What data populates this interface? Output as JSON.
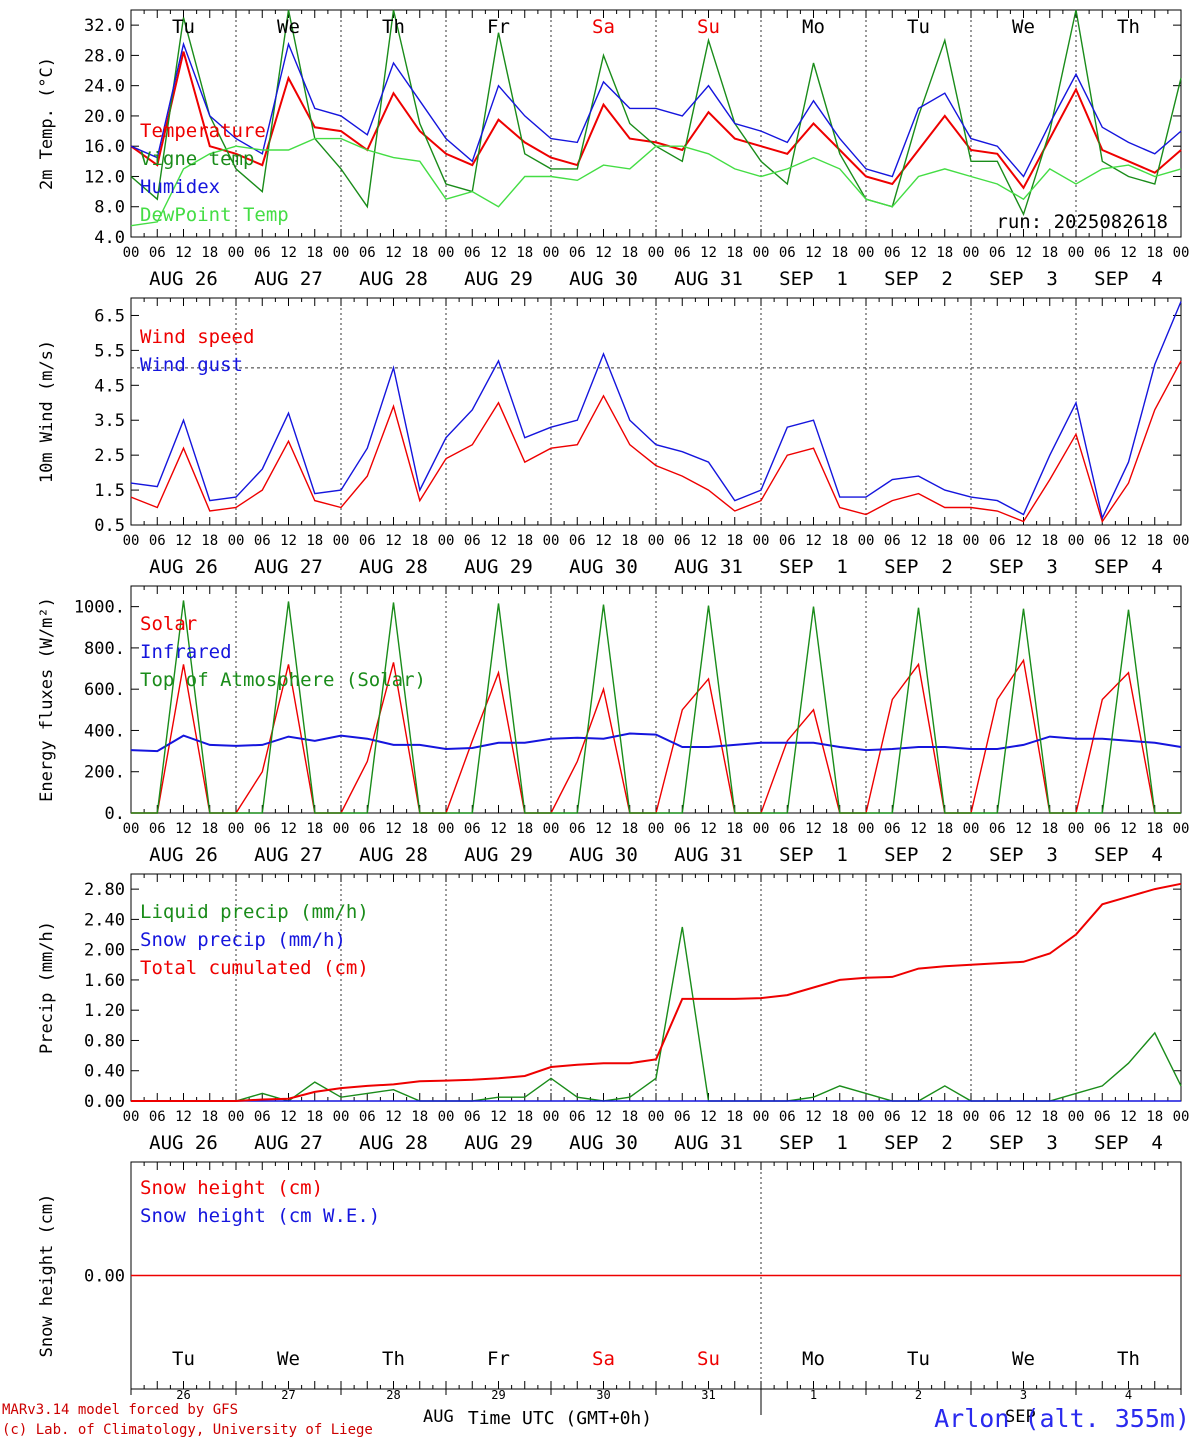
{
  "chart_data": {
    "type": "line",
    "run_label": "run: 2025082618",
    "footer": {
      "model": "MARv3.14 model forced by GFS",
      "credit": "(c) Lab. of Climatology, University of Liege",
      "xlabel": "Time UTC (GMT+0h)",
      "month_left": "AUG",
      "month_right": "SEP",
      "station": "Arlon (alt. 355m)"
    },
    "colors": {
      "red": "#ee0000",
      "green": "#1a8c1a",
      "blue": "#1515dd",
      "lightgreen": "#44dd44",
      "weekend": "#ee0000"
    },
    "weekdays": [
      "Tu",
      "We",
      "Th",
      "Fr",
      "Sa",
      "Su",
      "Mo",
      "Tu",
      "We",
      "Th"
    ],
    "weekend_days": [
      "Sa",
      "Su"
    ],
    "dates": [
      "AUG 26",
      "AUG 27",
      "AUG 28",
      "AUG 29",
      "AUG 30",
      "AUG 31",
      "SEP  1",
      "SEP  2",
      "SEP  3",
      "SEP  4"
    ],
    "day_numbers": [
      "26",
      "27",
      "28",
      "29",
      "30",
      "31",
      "1",
      "2",
      "3",
      "4"
    ],
    "hour_ticks": [
      "00",
      "06",
      "12",
      "18"
    ],
    "x_hours": [
      0,
      6,
      12,
      18,
      24,
      30,
      36,
      42,
      48,
      54,
      60,
      66,
      72,
      78,
      84,
      90,
      96,
      102,
      108,
      114,
      120,
      126,
      132,
      138,
      144,
      150,
      156,
      162,
      168,
      174,
      180,
      186,
      192,
      198,
      204,
      210,
      216,
      222,
      228,
      234,
      240
    ],
    "panels": [
      {
        "id": "temperature",
        "ylabel": "2m Temp. (°C)",
        "ylim": [
          4.0,
          34.0
        ],
        "yticks": [
          "32.0",
          "28.0",
          "24.0",
          "20.0",
          "16.0",
          "12.0",
          "8.0",
          "4.0"
        ],
        "ytick_values": [
          32,
          28,
          24,
          20,
          16,
          12,
          8,
          4
        ],
        "series": [
          {
            "name": "Temperature",
            "color": "#ee0000",
            "values": [
              16,
              13.5,
              28.5,
              16,
              15,
              13.5,
              25,
              18.5,
              18,
              15.5,
              23,
              18,
              15,
              13.5,
              19.5,
              16.5,
              14.5,
              13.5,
              21.5,
              17,
              16.5,
              15.5,
              20.5,
              17,
              16,
              15,
              19,
              15.5,
              12,
              11,
              15.5,
              20,
              15.5,
              15,
              10.5,
              17,
              23.5,
              15.5,
              14,
              12.5,
              15.5
            ]
          },
          {
            "name": "Vigne temp",
            "color": "#1a8c1a",
            "values": [
              12,
              9,
              33,
              20,
              13,
              10,
              34,
              17,
              13,
              8,
              34,
              19,
              11,
              10,
              31,
              15,
              13,
              13,
              28,
              19,
              16,
              14,
              30,
              19,
              14,
              11,
              27,
              15,
              9,
              8,
              20,
              30,
              14,
              14,
              7,
              18,
              34,
              14,
              12,
              11,
              25
            ]
          },
          {
            "name": "Humidex",
            "color": "#1515dd",
            "values": [
              16,
              14.5,
              29.5,
              20,
              17,
              15,
              29.5,
              21,
              20,
              17.5,
              27,
              22,
              17,
              14,
              24,
              20,
              17,
              16.5,
              24.5,
              21,
              21,
              20,
              24,
              19,
              18,
              16.5,
              22,
              17,
              13,
              12,
              21,
              23,
              17,
              16,
              12,
              19,
              25.5,
              18.5,
              16.5,
              15,
              18
            ]
          },
          {
            "name": "DewPoint Temp",
            "color": "#44dd44",
            "values": [
              5.5,
              6,
              13,
              15,
              16,
              15.5,
              15.5,
              17,
              17,
              15.5,
              14.5,
              14,
              9,
              10,
              8,
              12,
              12,
              11.5,
              13.5,
              13,
              16,
              16,
              15,
              13,
              12,
              13,
              14.5,
              13,
              9,
              8,
              12,
              13,
              12,
              11,
              9,
              13,
              11,
              13,
              13.5,
              12,
              13
            ]
          }
        ]
      },
      {
        "id": "wind",
        "ylabel": "10m Wind (m/s)",
        "ylim": [
          0.5,
          7.0
        ],
        "yticks": [
          "6.5",
          "5.5",
          "4.5",
          "3.5",
          "2.5",
          "1.5",
          "0.5"
        ],
        "ytick_values": [
          6.5,
          5.5,
          4.5,
          3.5,
          2.5,
          1.5,
          0.5
        ],
        "reference_line": 5.0,
        "series": [
          {
            "name": "Wind speed",
            "color": "#ee0000",
            "values": [
              1.3,
              1.0,
              2.7,
              0.9,
              1.0,
              1.5,
              2.9,
              1.2,
              1.0,
              1.9,
              3.9,
              1.2,
              2.4,
              2.8,
              4.0,
              2.3,
              2.7,
              2.8,
              4.2,
              2.8,
              2.2,
              1.9,
              1.5,
              0.9,
              1.2,
              2.5,
              2.7,
              1.0,
              0.8,
              1.2,
              1.4,
              1.0,
              1.0,
              0.9,
              0.6,
              1.8,
              3.1,
              0.6,
              1.7,
              3.8,
              5.2
            ]
          },
          {
            "name": "Wind gust",
            "color": "#1515dd",
            "values": [
              1.7,
              1.6,
              3.5,
              1.2,
              1.3,
              2.1,
              3.7,
              1.4,
              1.5,
              2.7,
              5.0,
              1.5,
              3.0,
              3.8,
              5.2,
              3.0,
              3.3,
              3.5,
              5.4,
              3.5,
              2.8,
              2.6,
              2.3,
              1.2,
              1.5,
              3.3,
              3.5,
              1.3,
              1.3,
              1.8,
              1.9,
              1.5,
              1.3,
              1.2,
              0.8,
              2.5,
              4.0,
              0.7,
              2.3,
              5.1,
              6.9
            ]
          }
        ]
      },
      {
        "id": "energy",
        "ylabel": "Energy fluxes (W/m²)",
        "ylim": [
          0,
          1100
        ],
        "yticks": [
          "1000.",
          "800.",
          "600.",
          "400.",
          "200.",
          "0."
        ],
        "ytick_values": [
          1000,
          800,
          600,
          400,
          200,
          0
        ],
        "series": [
          {
            "name": "Solar",
            "color": "#ee0000",
            "values": [
              0,
              0,
              720,
              0,
              0,
              200,
              720,
              0,
              0,
              250,
              730,
              0,
              0,
              350,
              680,
              0,
              0,
              250,
              600,
              0,
              0,
              500,
              650,
              0,
              0,
              350,
              500,
              0,
              0,
              550,
              720,
              0,
              0,
              550,
              740,
              0,
              0,
              550,
              680,
              0,
              0
            ]
          },
          {
            "name": "Infrared",
            "color": "#1515dd",
            "values": [
              305,
              300,
              375,
              330,
              325,
              330,
              370,
              350,
              375,
              360,
              330,
              330,
              310,
              315,
              340,
              340,
              360,
              365,
              360,
              385,
              380,
              320,
              320,
              330,
              340,
              340,
              340,
              320,
              305,
              310,
              320,
              320,
              310,
              310,
              330,
              370,
              360,
              360,
              350,
              340,
              320
            ]
          },
          {
            "name": "Top of Atmosphere (Solar)",
            "color": "#1a8c1a",
            "values": [
              0,
              0,
              1030,
              0,
              0,
              0,
              1025,
              0,
              0,
              0,
              1020,
              0,
              0,
              0,
              1015,
              0,
              0,
              0,
              1010,
              0,
              0,
              0,
              1005,
              0,
              0,
              0,
              1000,
              0,
              0,
              0,
              995,
              0,
              0,
              0,
              990,
              0,
              0,
              0,
              985,
              0,
              0
            ]
          }
        ]
      },
      {
        "id": "precip",
        "ylabel": "Precip (mm/h)",
        "ylim": [
          0,
          3.0
        ],
        "yticks": [
          "2.80",
          "2.40",
          "2.00",
          "1.60",
          "1.20",
          "0.80",
          "0.40",
          "0.00"
        ],
        "ytick_values": [
          2.8,
          2.4,
          2.0,
          1.6,
          1.2,
          0.8,
          0.4,
          0.0
        ],
        "series": [
          {
            "name": "Liquid precip (mm/h)",
            "color": "#1a8c1a",
            "values": [
              0,
              0,
              0,
              0,
              0,
              0.1,
              0,
              0.25,
              0.05,
              0.1,
              0.15,
              0,
              0,
              0,
              0.05,
              0.05,
              0.3,
              0.05,
              0,
              0.05,
              0.3,
              2.3,
              0,
              0,
              0,
              0,
              0.05,
              0.2,
              0.1,
              0,
              0,
              0.2,
              0,
              0,
              0,
              0,
              0.1,
              0.2,
              0.5,
              0.9,
              0.2
            ]
          },
          {
            "name": "Snow precip (mm/h)",
            "color": "#1515dd",
            "values": [
              0,
              0,
              0,
              0,
              0,
              0,
              0,
              0,
              0,
              0,
              0,
              0,
              0,
              0,
              0,
              0,
              0,
              0,
              0,
              0,
              0,
              0,
              0,
              0,
              0,
              0,
              0,
              0,
              0,
              0,
              0,
              0,
              0,
              0,
              0,
              0,
              0,
              0,
              0,
              0,
              0
            ]
          },
          {
            "name": "Total cumulated (cm)",
            "color": "#ee0000",
            "values": [
              0,
              0,
              0,
              0,
              0,
              0.02,
              0.03,
              0.12,
              0.17,
              0.2,
              0.22,
              0.26,
              0.27,
              0.28,
              0.3,
              0.33,
              0.45,
              0.48,
              0.5,
              0.5,
              0.55,
              1.35,
              1.35,
              1.35,
              1.36,
              1.4,
              1.5,
              1.6,
              1.63,
              1.64,
              1.75,
              1.78,
              1.8,
              1.82,
              1.84,
              1.95,
              2.2,
              2.6,
              2.7,
              2.8,
              2.87
            ]
          }
        ]
      },
      {
        "id": "snow",
        "ylabel": "Snow height (cm)",
        "ylim": [
          -1,
          1
        ],
        "yticks": [
          "0.00"
        ],
        "ytick_values": [
          0
        ],
        "series": [
          {
            "name": "Snow height (cm)",
            "color": "#ee0000",
            "values": [
              0,
              0,
              0,
              0,
              0,
              0,
              0,
              0,
              0,
              0,
              0,
              0,
              0,
              0,
              0,
              0,
              0,
              0,
              0,
              0,
              0,
              0,
              0,
              0,
              0,
              0,
              0,
              0,
              0,
              0,
              0,
              0,
              0,
              0,
              0,
              0,
              0,
              0,
              0,
              0,
              0
            ]
          },
          {
            "name": "Snow height (cm W.E.)",
            "color": "#1515dd",
            "values": []
          }
        ]
      }
    ]
  }
}
